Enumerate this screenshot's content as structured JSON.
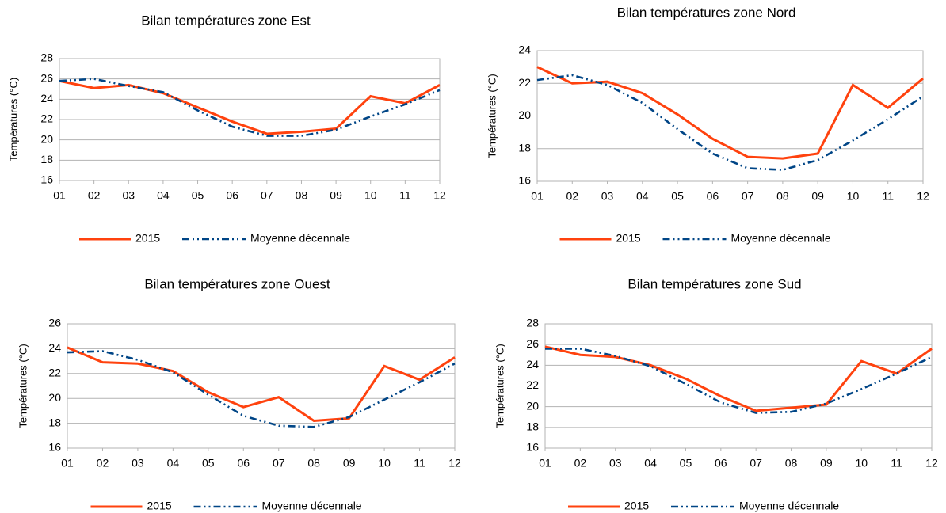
{
  "chart_data": [
    {
      "type": "line",
      "title": "Bilan températures zone Est",
      "ylabel": "Températures (°C)",
      "categories": [
        "01",
        "02",
        "03",
        "04",
        "05",
        "06",
        "07",
        "08",
        "09",
        "10",
        "11",
        "12"
      ],
      "series": [
        {
          "name": "2015",
          "color": "#ff420e",
          "style": "solid",
          "values": [
            25.8,
            25.1,
            25.4,
            24.6,
            23.2,
            21.8,
            20.6,
            20.8,
            21.1,
            24.3,
            23.6,
            25.4
          ]
        },
        {
          "name": "Moyenne décennale",
          "color": "#004586",
          "style": "dashdotdot",
          "values": [
            25.8,
            26.0,
            25.3,
            24.7,
            22.9,
            21.3,
            20.4,
            20.4,
            21.0,
            22.3,
            23.5,
            24.9
          ]
        }
      ],
      "ylim": [
        16,
        28
      ],
      "yticks": [
        16,
        18,
        20,
        22,
        24,
        26,
        28
      ],
      "grid": true
    },
    {
      "type": "line",
      "title": "Bilan températures zone Nord",
      "ylabel": "Températures (°C)",
      "categories": [
        "01",
        "02",
        "03",
        "04",
        "05",
        "06",
        "07",
        "08",
        "09",
        "10",
        "11",
        "12"
      ],
      "series": [
        {
          "name": "2015",
          "color": "#ff420e",
          "style": "solid",
          "values": [
            23.0,
            22.0,
            22.1,
            21.4,
            20.1,
            18.6,
            17.5,
            17.4,
            17.7,
            21.9,
            20.5,
            22.3
          ]
        },
        {
          "name": "Moyenne décennale",
          "color": "#004586",
          "style": "dashdotdot",
          "values": [
            22.2,
            22.5,
            21.9,
            20.8,
            19.2,
            17.7,
            16.8,
            16.7,
            17.3,
            18.5,
            19.8,
            21.2
          ]
        }
      ],
      "ylim": [
        16,
        24
      ],
      "yticks": [
        16,
        18,
        20,
        22,
        24
      ],
      "grid": true
    },
    {
      "type": "line",
      "title": "Bilan températures zone Ouest",
      "ylabel": "Températures (°C)",
      "categories": [
        "01",
        "02",
        "03",
        "04",
        "05",
        "06",
        "07",
        "08",
        "09",
        "10",
        "11",
        "12"
      ],
      "series": [
        {
          "name": "2015",
          "color": "#ff420e",
          "style": "solid",
          "values": [
            24.1,
            22.9,
            22.8,
            22.2,
            20.5,
            19.3,
            20.1,
            18.2,
            18.4,
            22.6,
            21.5,
            23.3
          ]
        },
        {
          "name": "Moyenne décennale",
          "color": "#004586",
          "style": "dashdotdot",
          "values": [
            23.7,
            23.8,
            23.1,
            22.1,
            20.3,
            18.6,
            17.8,
            17.7,
            18.5,
            19.9,
            21.3,
            22.8
          ]
        }
      ],
      "ylim": [
        16,
        26
      ],
      "yticks": [
        16,
        18,
        20,
        22,
        24,
        26
      ],
      "grid": true
    },
    {
      "type": "line",
      "title": "Bilan températures zone Sud",
      "ylabel": "Températures (°C)",
      "categories": [
        "01",
        "02",
        "03",
        "04",
        "05",
        "06",
        "07",
        "08",
        "09",
        "10",
        "11",
        "12"
      ],
      "series": [
        {
          "name": "2015",
          "color": "#ff420e",
          "style": "solid",
          "values": [
            25.8,
            25.0,
            24.8,
            24.0,
            22.7,
            21.0,
            19.6,
            19.9,
            20.2,
            24.4,
            23.2,
            25.6
          ]
        },
        {
          "name": "Moyenne décennale",
          "color": "#004586",
          "style": "dashdotdot",
          "values": [
            25.6,
            25.6,
            24.9,
            23.9,
            22.2,
            20.4,
            19.4,
            19.5,
            20.3,
            21.7,
            23.2,
            24.8
          ]
        }
      ],
      "ylim": [
        16,
        28
      ],
      "yticks": [
        16,
        18,
        20,
        22,
        24,
        26,
        28
      ],
      "grid": true
    }
  ]
}
